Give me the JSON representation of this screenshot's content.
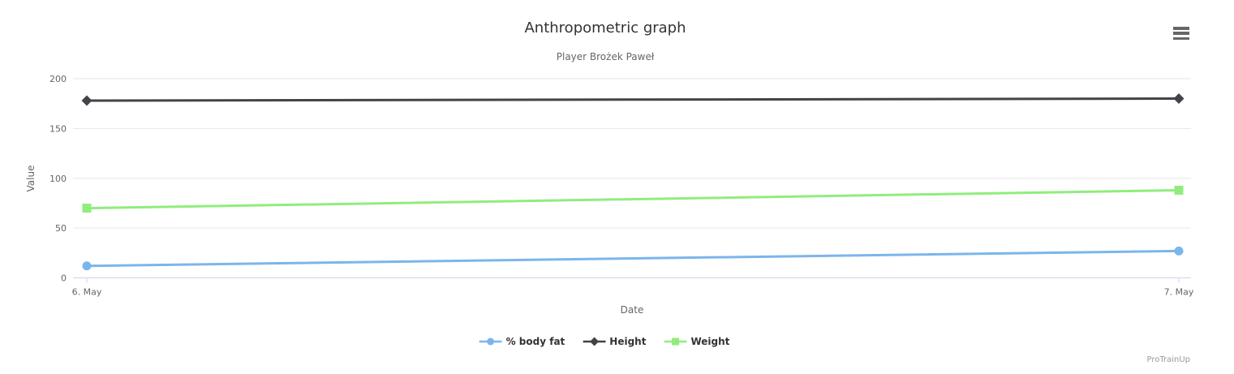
{
  "header": {
    "title": "Anthropometric graph",
    "subtitle": "Player Brożek Paweł"
  },
  "axes": {
    "x_title": "Date",
    "y_title": "Value"
  },
  "credits": {
    "label": "ProTrainUp"
  },
  "colors": {
    "grid": "#e6e6e6",
    "axis": "#ccd6eb",
    "tick_label": "#666666",
    "title": "#333333",
    "legend_text": "#333333",
    "credits": "#999999",
    "menu_icon": "#666666",
    "background": "#ffffff"
  },
  "chart_data": {
    "type": "line",
    "title": "Anthropometric graph",
    "subtitle": "Player Brożek Paweł",
    "xlabel": "Date",
    "ylabel": "Value",
    "categories": [
      "6. May",
      "7. May"
    ],
    "series": [
      {
        "name": "% body fat",
        "values": [
          12,
          27
        ],
        "color": "#7cb5ec",
        "marker": "circle"
      },
      {
        "name": "Height",
        "values": [
          178,
          180
        ],
        "color": "#434348",
        "marker": "diamond"
      },
      {
        "name": "Weight",
        "values": [
          70,
          88
        ],
        "color": "#90ed7d",
        "marker": "square"
      }
    ],
    "ylim": [
      0,
      200
    ],
    "yticks": [
      0,
      50,
      100,
      150,
      200
    ],
    "grid": true,
    "legend_position": "bottom"
  }
}
